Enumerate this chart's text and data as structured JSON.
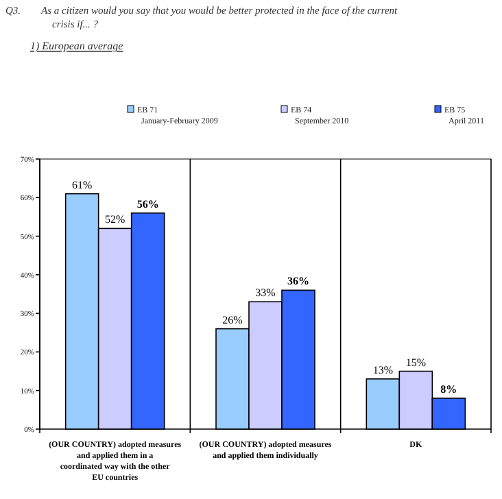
{
  "chart_data": {
    "type": "bar",
    "title": "Q3.  As a citizen would you say that you would be better protected in the face of the current crisis if... ?",
    "subtitle": "1) European average",
    "categories": [
      "(OUR COUNTRY) adopted measures and applied them in a coordinated way with the other EU countries",
      "(OUR COUNTRY) adopted measures and applied them individually",
      "DK"
    ],
    "series": [
      {
        "name": "EB 71\nJanuary-February 2009",
        "color": "#99ccff",
        "values": [
          61,
          26,
          13
        ],
        "value_labels": [
          "61%",
          "26%",
          "13%"
        ]
      },
      {
        "name": "EB 74\nSeptember 2010",
        "color": "#ccccff",
        "values": [
          52,
          33,
          15
        ],
        "value_labels": [
          "52%",
          "33%",
          "15%"
        ]
      },
      {
        "name": "EB 75\nApril 2011",
        "color": "#3366ff",
        "values": [
          56,
          36,
          8
        ],
        "value_labels": [
          "56%",
          "36%",
          "8%"
        ]
      }
    ],
    "ylim": [
      0,
      70
    ],
    "yticks": [
      {
        "value": 0,
        "label": "0%"
      },
      {
        "value": 10,
        "label": "10%"
      },
      {
        "value": 20,
        "label": "20%"
      },
      {
        "value": 30,
        "label": "30%"
      },
      {
        "value": 40,
        "label": "40%"
      },
      {
        "value": 50,
        "label": "50%"
      },
      {
        "value": 60,
        "label": "60%"
      },
      {
        "value": 70,
        "label": "70%"
      }
    ],
    "legend": "top",
    "grid": false
  }
}
